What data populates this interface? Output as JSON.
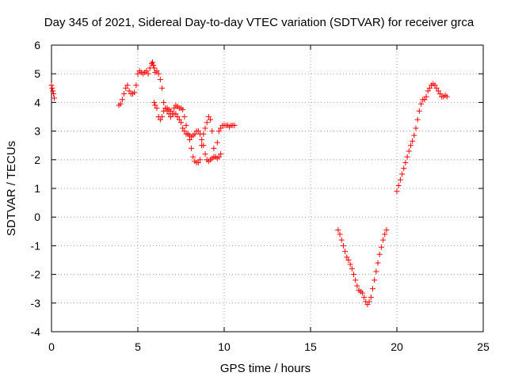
{
  "chart_data": {
    "type": "scatter",
    "title": "Day 345 of 2021, Sidereal Day-to-day VTEC variation (SDTVAR) for receiver grca",
    "xlabel": "GPS time / hours",
    "ylabel": "SDTVAR / TECUs",
    "xlim": [
      0,
      25
    ],
    "ylim": [
      -4,
      6
    ],
    "xticks": [
      "0",
      "5",
      "10",
      "15",
      "20",
      "25"
    ],
    "yticks": [
      "-4",
      "-3",
      "-2",
      "-1",
      "0",
      "1",
      "2",
      "3",
      "4",
      "5",
      "6"
    ],
    "grid": true,
    "marker": "plus",
    "color": "#ff0000",
    "series": [
      {
        "name": "SDTVAR",
        "x": [
          0.0,
          0.04,
          0.08,
          0.12,
          0.16,
          3.9,
          4.0,
          4.1,
          4.2,
          4.3,
          4.4,
          4.5,
          4.6,
          4.7,
          4.8,
          4.9,
          5.0,
          5.1,
          5.2,
          5.3,
          5.4,
          5.5,
          5.6,
          5.7,
          5.8,
          5.85,
          5.9,
          5.95,
          6.0,
          6.1,
          6.2,
          6.3,
          6.4,
          6.5,
          6.6,
          6.7,
          6.8,
          6.9,
          7.0,
          7.1,
          7.2,
          7.3,
          7.4,
          7.5,
          7.6,
          7.7,
          7.8,
          7.9,
          8.0,
          8.1,
          8.2,
          8.3,
          8.4,
          8.5,
          8.6,
          8.7,
          8.8,
          8.9,
          9.0,
          9.1,
          9.2,
          9.3,
          9.4,
          9.5,
          9.6,
          9.7,
          9.8,
          9.9,
          10.0,
          10.1,
          10.2,
          10.3,
          10.4,
          10.5,
          10.6,
          5.95,
          6.0,
          6.1,
          6.2,
          6.3,
          6.4,
          6.5,
          6.6,
          6.7,
          6.8,
          6.9,
          7.0,
          7.1,
          7.2,
          7.3,
          7.4,
          7.5,
          7.6,
          7.7,
          7.8,
          7.9,
          8.0,
          8.1,
          8.2,
          8.3,
          8.4,
          8.5,
          8.6,
          8.7,
          8.8,
          8.9,
          9.0,
          9.1,
          9.2,
          9.3,
          9.4,
          9.5,
          9.6,
          9.7,
          9.8,
          16.6,
          16.7,
          16.8,
          16.9,
          17.0,
          17.1,
          17.2,
          17.3,
          17.4,
          17.5,
          17.6,
          17.7,
          17.8,
          17.9,
          18.0,
          18.1,
          18.2,
          18.3,
          18.4,
          18.5,
          18.6,
          18.7,
          18.8,
          18.9,
          19.0,
          19.1,
          19.2,
          19.3,
          19.4,
          20.0,
          20.1,
          20.2,
          20.3,
          20.4,
          20.5,
          20.6,
          20.7,
          20.8,
          20.9,
          21.0,
          21.1,
          21.2,
          21.3,
          21.4,
          21.5,
          21.6,
          21.7,
          21.8,
          21.9,
          22.0,
          22.1,
          22.2,
          22.3,
          22.4,
          22.5,
          22.6,
          22.7,
          22.8,
          22.9
        ],
        "y": [
          4.6,
          4.5,
          4.4,
          4.3,
          4.15,
          3.9,
          3.95,
          4.1,
          4.3,
          4.5,
          4.6,
          4.4,
          4.3,
          4.3,
          4.35,
          4.6,
          5.0,
          5.1,
          5.05,
          5.0,
          5.05,
          5.1,
          5.0,
          5.2,
          5.35,
          5.4,
          5.3,
          5.2,
          5.05,
          5.1,
          5.0,
          4.8,
          4.5,
          4.0,
          3.8,
          3.7,
          3.6,
          3.5,
          3.6,
          3.8,
          3.9,
          3.85,
          3.8,
          3.8,
          3.75,
          3.5,
          3.2,
          2.9,
          2.7,
          2.4,
          2.1,
          1.95,
          1.9,
          1.9,
          2.0,
          2.5,
          2.9,
          3.1,
          3.3,
          3.5,
          3.4,
          3.0,
          2.4,
          2.1,
          2.6,
          3.0,
          3.1,
          3.2,
          3.2,
          3.2,
          3.2,
          3.15,
          3.2,
          3.2,
          3.2,
          4.0,
          3.9,
          3.8,
          3.5,
          3.4,
          3.5,
          3.7,
          3.8,
          3.8,
          3.75,
          3.7,
          3.6,
          3.6,
          3.6,
          3.5,
          3.4,
          3.3,
          3.1,
          3.0,
          2.9,
          2.9,
          2.85,
          2.8,
          2.85,
          2.9,
          3.0,
          3.0,
          2.9,
          2.7,
          2.5,
          2.2,
          2.0,
          1.95,
          2.0,
          2.05,
          2.1,
          2.1,
          2.05,
          2.1,
          2.2,
          -0.45,
          -0.6,
          -0.8,
          -1.0,
          -1.2,
          -1.4,
          -1.5,
          -1.65,
          -1.8,
          -2.0,
          -2.2,
          -2.4,
          -2.55,
          -2.6,
          -2.65,
          -2.8,
          -2.95,
          -3.05,
          -2.95,
          -2.8,
          -2.5,
          -2.2,
          -1.9,
          -1.6,
          -1.3,
          -1.05,
          -0.8,
          -0.6,
          -0.45,
          0.9,
          1.1,
          1.3,
          1.5,
          1.7,
          1.9,
          2.1,
          2.3,
          2.5,
          2.65,
          2.85,
          3.1,
          3.4,
          3.7,
          3.95,
          4.1,
          4.1,
          4.2,
          4.4,
          4.5,
          4.6,
          4.65,
          4.6,
          4.5,
          4.4,
          4.3,
          4.2,
          4.2,
          4.25,
          4.2
        ]
      }
    ]
  }
}
